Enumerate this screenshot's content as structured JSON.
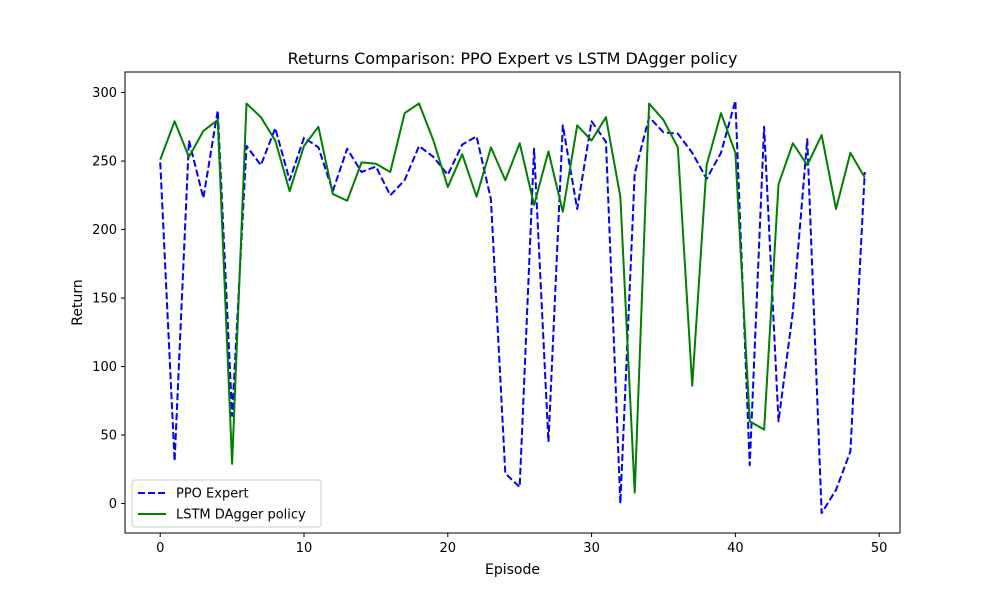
{
  "chart_data": {
    "type": "line",
    "title": "Returns Comparison: PPO Expert vs LSTM DAgger policy",
    "xlabel": "Episode",
    "ylabel": "Return",
    "xlim": [
      -2.45,
      51.45
    ],
    "ylim": [
      -21.5,
      315
    ],
    "xticks": [
      0,
      10,
      20,
      30,
      40,
      50
    ],
    "yticks": [
      0,
      50,
      100,
      150,
      200,
      250,
      300
    ],
    "grid": false,
    "legend_position": "lower-left",
    "x": [
      0,
      1,
      2,
      3,
      4,
      5,
      6,
      7,
      8,
      9,
      10,
      11,
      12,
      13,
      14,
      15,
      16,
      17,
      18,
      19,
      20,
      21,
      22,
      23,
      24,
      25,
      26,
      27,
      28,
      29,
      30,
      31,
      32,
      33,
      34,
      35,
      36,
      37,
      38,
      39,
      40,
      41,
      42,
      43,
      44,
      45,
      46,
      47,
      48,
      49
    ],
    "series": [
      {
        "name": "PPO Expert",
        "color": "#0000ff",
        "style": "dashed",
        "values": [
          249,
          31,
          265,
          223,
          287,
          64,
          261,
          247,
          274,
          236,
          267,
          260,
          228,
          259,
          242,
          246,
          225,
          236,
          261,
          253,
          240,
          262,
          268,
          222,
          22,
          12,
          259,
          45,
          276,
          215,
          279,
          264,
          0,
          241,
          282,
          271,
          270,
          256,
          237,
          256,
          294,
          28,
          275,
          60,
          140,
          266,
          -7,
          10,
          38,
          242
        ]
      },
      {
        "name": "LSTM DAgger policy",
        "color": "#008000",
        "style": "solid",
        "values": [
          251,
          279,
          253,
          272,
          280,
          29,
          292,
          282,
          265,
          228,
          261,
          275,
          226,
          221,
          249,
          248,
          242,
          285,
          292,
          265,
          231,
          255,
          224,
          260,
          236,
          263,
          218,
          257,
          213,
          276,
          265,
          282,
          224,
          8,
          292,
          280,
          260,
          86,
          247,
          285,
          256,
          60,
          54,
          233,
          263,
          247,
          269,
          215,
          256,
          238
        ]
      }
    ]
  }
}
